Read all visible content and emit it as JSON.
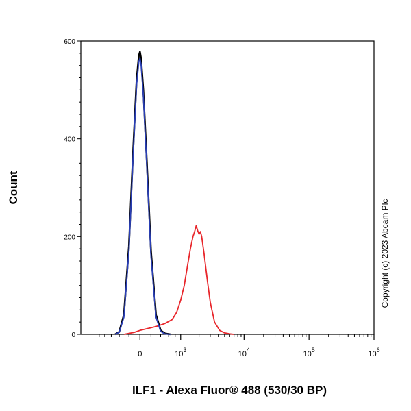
{
  "chart_data": {
    "type": "line",
    "title": "",
    "xlabel": "ILF1 - Alexa Fluor® 488 (530/30 BP)",
    "ylabel": "Count",
    "ylim": [
      0,
      600
    ],
    "y_ticks": [
      "0",
      "200",
      "400",
      "600"
    ],
    "x_scale": "biexponential",
    "x_ticks": [
      {
        "base": "0",
        "exp": ""
      },
      {
        "base": "10",
        "exp": "3"
      },
      {
        "base": "10",
        "exp": "4"
      },
      {
        "base": "10",
        "exp": "5"
      },
      {
        "base": "10",
        "exp": "6"
      }
    ],
    "grid": false,
    "annotation": "Copyright (c) 2023 Abcam Plc",
    "series": [
      {
        "color": "#e8262b",
        "x": [
          -300,
          -100,
          0,
          150,
          300,
          500,
          700,
          850,
          1000,
          1150,
          1300,
          1450,
          1600,
          1700,
          1800,
          1900,
          2000,
          2100,
          2200,
          2400,
          2700,
          3000,
          3500,
          4200,
          5000,
          6000,
          7000
        ],
        "y": [
          0,
          4,
          8,
          12,
          16,
          22,
          30,
          45,
          70,
          100,
          140,
          175,
          200,
          210,
          222,
          212,
          205,
          210,
          200,
          165,
          110,
          65,
          25,
          8,
          3,
          1,
          0
        ]
      },
      {
        "color": "#000000",
        "x": [
          -500,
          -400,
          -300,
          -200,
          -120,
          -60,
          -20,
          0,
          20,
          60,
          120,
          200,
          300,
          400,
          500,
          650
        ],
        "y": [
          0,
          5,
          40,
          180,
          380,
          520,
          570,
          578,
          565,
          500,
          360,
          170,
          40,
          8,
          2,
          0
        ]
      },
      {
        "color": "#2a3fb5",
        "x": [
          -500,
          -400,
          -300,
          -200,
          -120,
          -60,
          -20,
          0,
          20,
          60,
          120,
          200,
          300,
          400,
          500,
          650
        ],
        "y": [
          0,
          4,
          35,
          170,
          370,
          510,
          558,
          565,
          552,
          490,
          350,
          160,
          35,
          6,
          1,
          0
        ]
      }
    ]
  }
}
